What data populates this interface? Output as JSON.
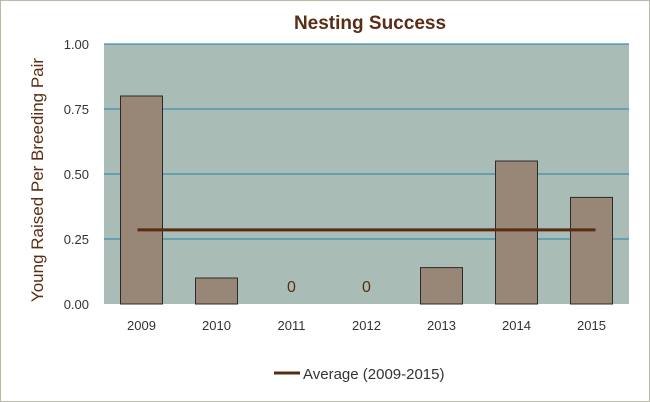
{
  "chart_data": {
    "type": "bar",
    "title": "Nesting Success",
    "xlabel": "",
    "ylabel": "Young Raised  Per Breeding  Pair",
    "categories": [
      "2009",
      "2010",
      "2011",
      "2012",
      "2013",
      "2014",
      "2015"
    ],
    "series": [
      {
        "values": [
          0.8,
          0.1,
          0,
          0,
          0.14,
          0.55,
          0.41
        ]
      }
    ],
    "zero_labels": [
      "",
      "",
      "0",
      "0",
      "",
      "",
      ""
    ],
    "average": {
      "name": "Average (2009-2015)",
      "value": 0.285
    },
    "ylim": [
      0,
      1.0
    ],
    "yticks": [
      "0.00",
      "0.25",
      "0.50",
      "0.75",
      "1.00"
    ],
    "grid": true,
    "legend": "bottom",
    "colors": {
      "plot_bg": "#a9bcb5",
      "bar_fill": "#988776",
      "bar_stroke": "#2b2b2b",
      "grid": "#3f8fab",
      "average_line": "#5a2a12",
      "title": "#5a2d14"
    }
  }
}
